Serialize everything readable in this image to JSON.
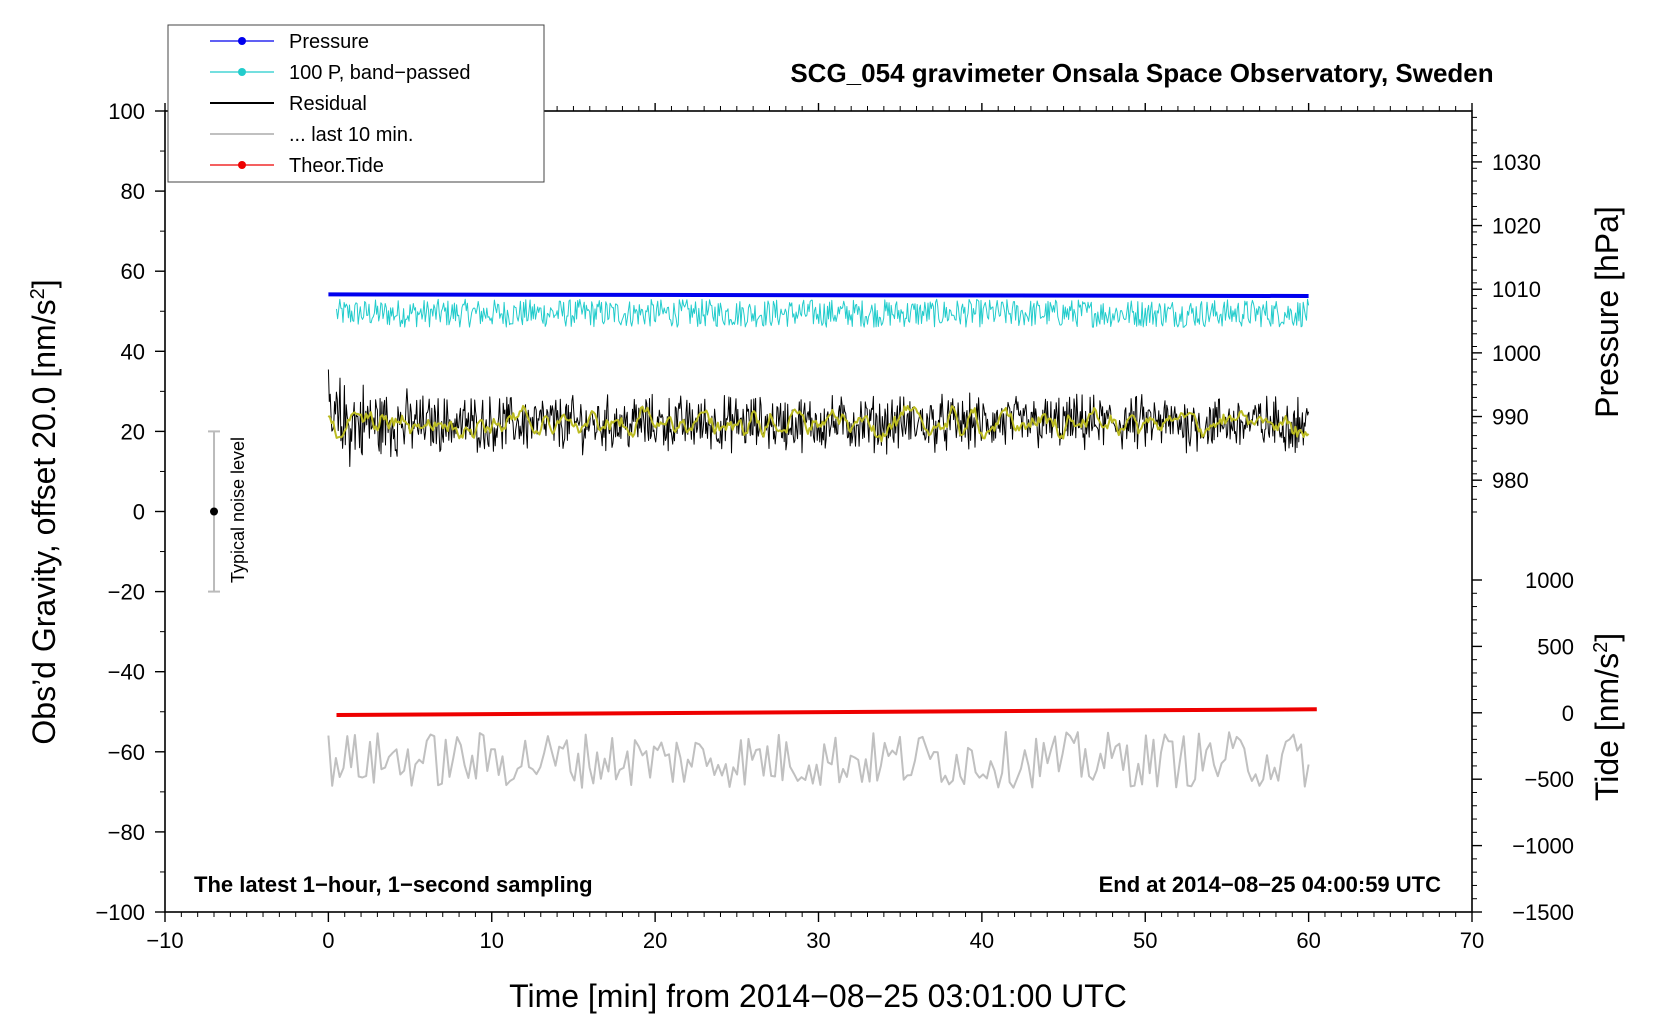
{
  "chart_data": {
    "type": "line",
    "title": "SCG_054 gravimeter Onsala Space Observatory, Sweden",
    "xlabel": "Time [min] from 2014−08−25 03:01:00 UTC",
    "ylabel_left": "Obs’d Gravity, offset 20.0 [nm/s",
    "ylabel_left_sup": "2",
    "ylabel_left_end": "]",
    "ylabel_right_pressure": "Pressure [hPa]",
    "ylabel_right_tide": "Tide [nm/s",
    "ylabel_right_tide_sup": "2",
    "ylabel_right_tide_end": "]",
    "xlim": [
      -10,
      70
    ],
    "ylim": [
      -100,
      100
    ],
    "pressure_range_hPa": [
      975,
      1038
    ],
    "tide_range": [
      -1500,
      1500
    ],
    "x_ticks": [
      -10,
      0,
      10,
      20,
      30,
      40,
      50,
      60,
      70
    ],
    "x_tick_labels": [
      "−10",
      "0",
      "10",
      "20",
      "30",
      "40",
      "50",
      "60",
      "70"
    ],
    "y_ticks": [
      -100,
      -80,
      -60,
      -40,
      -20,
      0,
      20,
      40,
      60,
      80,
      100
    ],
    "y_tick_labels": [
      "−100",
      "−80",
      "−60",
      "−40",
      "−20",
      "0",
      "20",
      "40",
      "60",
      "80",
      "100"
    ],
    "pressure_ticks": [
      980,
      990,
      1000,
      1010,
      1020,
      1030
    ],
    "pressure_tick_labels": [
      "980",
      "990",
      "1000",
      "1010",
      "1020",
      "1030"
    ],
    "tide_ticks": [
      -1500,
      -1000,
      -500,
      0,
      500,
      1000
    ],
    "tide_tick_labels": [
      "−1500",
      "−1000",
      "−500",
      "0",
      "500",
      "1000"
    ],
    "legend": [
      {
        "label": "Pressure",
        "color": "#0000ee",
        "marker": true
      },
      {
        "label": "100 P, band−passed",
        "color": "#22cccc",
        "marker": true
      },
      {
        "label": "Residual",
        "color": "#000000",
        "marker": false
      },
      {
        "label": "... last 10 min.",
        "color": "#c0c0c0",
        "marker": false
      },
      {
        "label": "Theor.Tide",
        "color": "#ee0000",
        "marker": true
      }
    ],
    "annotations": {
      "left": "The latest 1−hour, 1−second sampling",
      "right": "End at 2014−08−25 04:00:59 UTC",
      "noise_label": "Typical noise level"
    },
    "noise_bar": {
      "x": -7,
      "center": 0,
      "low": -20,
      "high": 20
    },
    "series": [
      {
        "name": "Pressure",
        "color": "#0000ee",
        "x_start": 0,
        "x_end": 60,
        "y_start": 54.2,
        "y_end": 53.8
      },
      {
        "name": "100 P, band-passed",
        "color": "#22cccc",
        "x_start": 0.5,
        "x_end": 60,
        "center": 49.5,
        "amplitude": 3.5
      },
      {
        "name": "Residual",
        "color": "#000000",
        "x_start": 0,
        "x_end": 60,
        "center": 22,
        "amplitude": 5.5
      },
      {
        "name": "Residual (smoothed)",
        "color": "#bbbb22",
        "x_start": 0,
        "x_end": 60,
        "center": 22,
        "amplitude": 2.8
      },
      {
        "name": "... last 10 min.",
        "color": "#c0c0c0",
        "x_start": 0,
        "x_end": 60,
        "center": -62,
        "amplitude": 3.5
      },
      {
        "name": "Theor.Tide",
        "color": "#ee0000",
        "x_start": 0.5,
        "x_end": 60.5,
        "y_start": -50.8,
        "y_end": -49.4
      }
    ]
  },
  "colors": {
    "pressure": "#0000ee",
    "bandpassed": "#22cccc",
    "residual": "#000000",
    "residual_smooth": "#bbbb22",
    "last10": "#c0c0c0",
    "tide": "#ee0000"
  }
}
